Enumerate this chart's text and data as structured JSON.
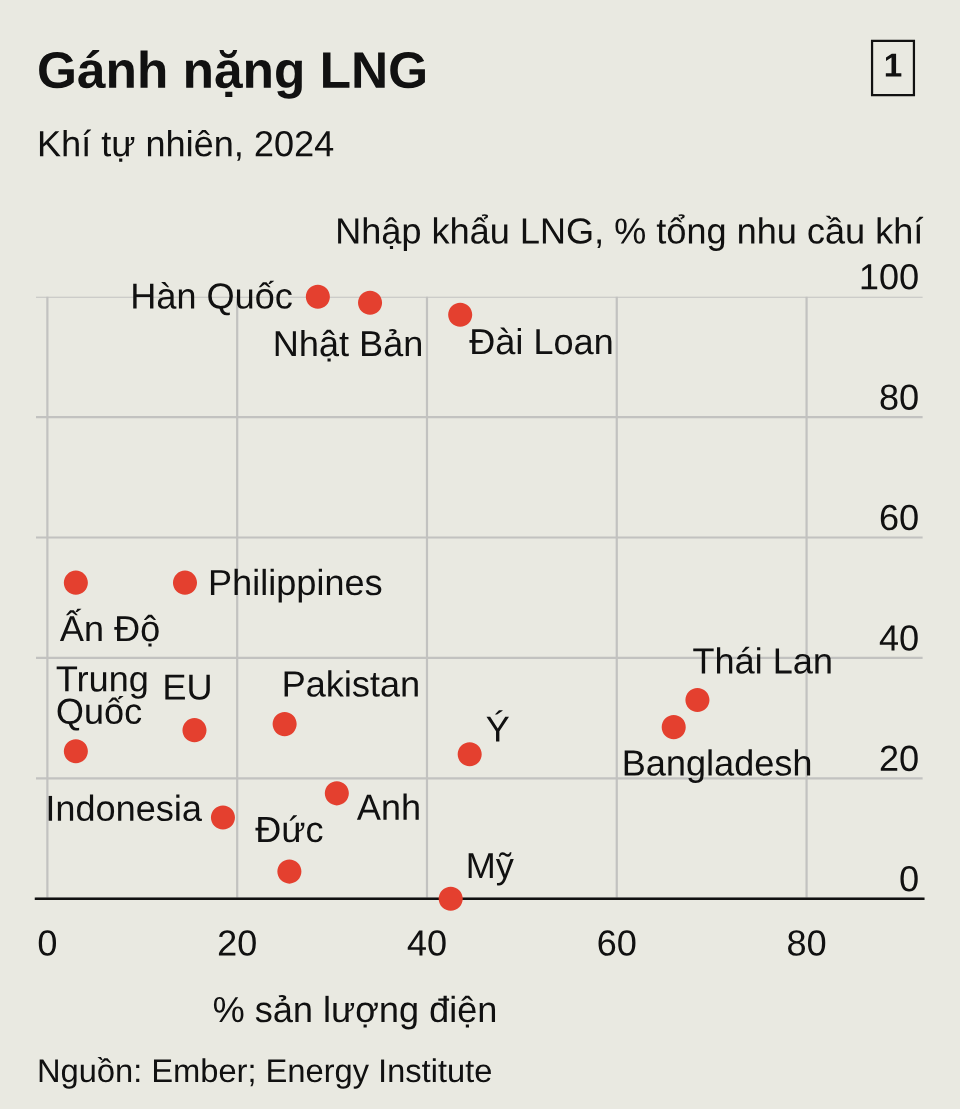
{
  "chart_data": {
    "type": "scatter",
    "title": "Gánh nặng LNG",
    "subtitle": "Khí tự nhiên, 2024",
    "xlabel": "% sản lượng điện",
    "ylabel": "Nhập khẩu LNG, % tổng nhu cầu khí",
    "series": [
      {
        "color": "#e4402f",
        "x": [
          28.5,
          34,
          43.5,
          3,
          14.5,
          3,
          15.5,
          25,
          44.5,
          68.5,
          66,
          18.5,
          30.5,
          25.5,
          42.5
        ],
        "values": [
          100,
          99,
          97,
          52.5,
          52.5,
          24.5,
          28,
          29,
          24,
          33,
          28.5,
          13.5,
          17.5,
          4.5,
          0
        ]
      }
    ],
    "xlim": [
      -1.2,
      92.3
    ],
    "xticks": [
      0,
      20,
      40,
      60,
      80
    ],
    "ylim": [
      0,
      100
    ],
    "yticks": [
      0,
      20,
      40,
      60,
      80,
      100
    ],
    "grid": true,
    "marker": "circle",
    "annotations": [
      "1",
      {
        "text": "Hàn Quốc",
        "x": 28.5,
        "y": 100
      },
      {
        "text": "Nhật Bản",
        "x": 34,
        "y": 99
      },
      {
        "text": "Đài Loan",
        "x": 43.5,
        "y": 97
      },
      {
        "text": "Ấn Độ",
        "x": 3,
        "y": 52.5
      },
      {
        "text": "Philippines",
        "x": 14.5,
        "y": 52.5
      },
      {
        "text": "Trung\nQuốc",
        "x": 3,
        "y": 24.5
      },
      {
        "text": "EU",
        "x": 15.5,
        "y": 28
      },
      {
        "text": "Pakistan",
        "x": 25,
        "y": 29
      },
      {
        "text": "Ý",
        "x": 44.5,
        "y": 24
      },
      {
        "text": "Thái Lan",
        "x": 68.5,
        "y": 33
      },
      {
        "text": "Bangladesh",
        "x": 66,
        "y": 28.5
      },
      {
        "text": "Indonesia",
        "x": 18.5,
        "y": 13.5
      },
      {
        "text": "Anh",
        "x": 30.5,
        "y": 17.5
      },
      {
        "text": "Đức",
        "x": 25.5,
        "y": 4.5
      },
      {
        "text": "Mỹ",
        "x": 42.5,
        "y": 0
      },
      "Nguồn: Ember; Energy Institute"
    ]
  }
}
